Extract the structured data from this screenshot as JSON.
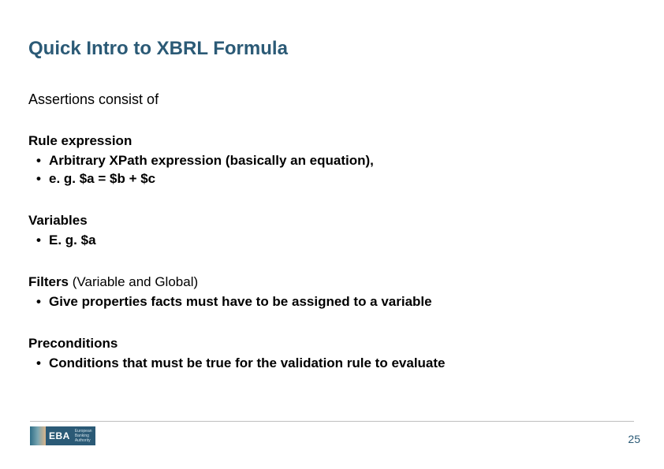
{
  "colors": {
    "title": "#2b5a76",
    "body": "#000000",
    "footer_line": "#bfbfbf",
    "logo_bg": "#2b5a76",
    "logo_text": "#ffffff",
    "logo_sub": "#cfe0e8",
    "background": "#ffffff",
    "pagenum": "#2b5a76"
  },
  "fonts": {
    "title_size_pt": 24,
    "subtitle_size_pt": 18,
    "body_size_pt": 17,
    "pagenum_size_pt": 14,
    "family": "Arial"
  },
  "title": "Quick Intro to XBRL Formula",
  "subtitle": "Assertions consist of",
  "sections": [
    {
      "heading": "Rule expression",
      "heading_suffix": "",
      "bullets": [
        "Arbitrary XPath expression (basically an equation),",
        "e. g. $a = $b + $c"
      ]
    },
    {
      "heading": "Variables",
      "heading_suffix": "",
      "bullets": [
        "E. g. $a"
      ]
    },
    {
      "heading": "Filters",
      "heading_suffix": " (Variable and Global)",
      "bullets": [
        "Give properties facts must have to be assigned to a variable"
      ]
    },
    {
      "heading": "Preconditions",
      "heading_suffix": "",
      "bullets": [
        "Conditions that must be true for the validation rule to evaluate"
      ]
    }
  ],
  "logo": {
    "text": "EBA",
    "sub1": "European",
    "sub2": "Banking",
    "sub3": "Authority"
  },
  "page_number": "25"
}
